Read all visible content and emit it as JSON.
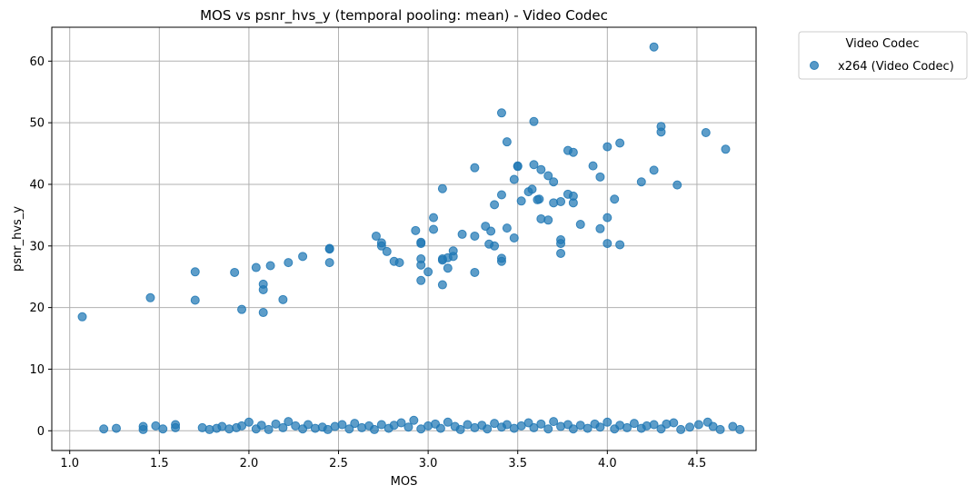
{
  "chart_data": {
    "type": "scatter",
    "title": "MOS vs psnr_hvs_y (temporal pooling: mean) - Video Codec",
    "xlabel": "MOS",
    "ylabel": "psnr_hvs_y",
    "xlim": [
      0.9,
      4.83
    ],
    "ylim": [
      -3.2,
      65.5
    ],
    "xticks": [
      1.0,
      1.5,
      2.0,
      2.5,
      3.0,
      3.5,
      4.0,
      4.5
    ],
    "xtick_labels": [
      "1.0",
      "1.5",
      "2.0",
      "2.5",
      "3.0",
      "3.5",
      "4.0",
      "4.5"
    ],
    "yticks": [
      0,
      10,
      20,
      30,
      40,
      50,
      60
    ],
    "ytick_labels": [
      "0",
      "10",
      "20",
      "30",
      "40",
      "50",
      "60"
    ],
    "grid": true,
    "legend": {
      "title": "Video Codec",
      "placement": "outside-top-right"
    },
    "series": [
      {
        "name": "x264 (Video Codec)",
        "color": "#1f77b4",
        "points": [
          [
            1.07,
            18.5
          ],
          [
            1.45,
            21.6
          ],
          [
            1.7,
            25.8
          ],
          [
            1.7,
            21.2
          ],
          [
            1.92,
            25.7
          ],
          [
            1.96,
            19.7
          ],
          [
            2.04,
            26.5
          ],
          [
            2.08,
            23.8
          ],
          [
            2.08,
            22.9
          ],
          [
            2.08,
            19.2
          ],
          [
            2.12,
            26.8
          ],
          [
            2.19,
            21.3
          ],
          [
            2.22,
            27.3
          ],
          [
            2.3,
            28.3
          ],
          [
            2.45,
            29.6
          ],
          [
            2.45,
            29.5
          ],
          [
            2.45,
            27.3
          ],
          [
            2.71,
            31.6
          ],
          [
            2.74,
            30.5
          ],
          [
            2.74,
            30.0
          ],
          [
            2.77,
            29.1
          ],
          [
            2.81,
            27.5
          ],
          [
            2.84,
            27.3
          ],
          [
            2.93,
            32.5
          ],
          [
            2.96,
            30.6
          ],
          [
            2.96,
            30.4
          ],
          [
            2.96,
            27.9
          ],
          [
            2.96,
            26.9
          ],
          [
            2.96,
            24.4
          ],
          [
            3.0,
            25.8
          ],
          [
            3.03,
            32.7
          ],
          [
            3.03,
            34.6
          ],
          [
            3.08,
            39.3
          ],
          [
            3.08,
            27.9
          ],
          [
            3.08,
            27.7
          ],
          [
            3.08,
            23.7
          ],
          [
            3.11,
            28.1
          ],
          [
            3.11,
            26.4
          ],
          [
            3.14,
            28.3
          ],
          [
            3.14,
            29.2
          ],
          [
            3.19,
            31.9
          ],
          [
            3.26,
            42.7
          ],
          [
            3.26,
            31.6
          ],
          [
            3.26,
            25.7
          ],
          [
            3.32,
            33.2
          ],
          [
            3.34,
            30.3
          ],
          [
            3.35,
            32.4
          ],
          [
            3.37,
            30.0
          ],
          [
            3.37,
            36.7
          ],
          [
            3.41,
            38.3
          ],
          [
            3.41,
            27.5
          ],
          [
            3.41,
            28.0
          ],
          [
            3.41,
            51.6
          ],
          [
            3.44,
            32.9
          ],
          [
            3.44,
            46.9
          ],
          [
            3.48,
            31.3
          ],
          [
            3.48,
            40.8
          ],
          [
            3.5,
            43.0
          ],
          [
            3.5,
            42.9
          ],
          [
            3.52,
            37.3
          ],
          [
            3.56,
            38.8
          ],
          [
            3.58,
            39.2
          ],
          [
            3.59,
            43.2
          ],
          [
            3.59,
            50.2
          ],
          [
            3.61,
            37.5
          ],
          [
            3.62,
            37.6
          ],
          [
            3.63,
            34.4
          ],
          [
            3.63,
            42.4
          ],
          [
            3.67,
            34.2
          ],
          [
            3.67,
            41.4
          ],
          [
            3.7,
            37.0
          ],
          [
            3.7,
            40.4
          ],
          [
            3.74,
            31.0
          ],
          [
            3.74,
            30.4
          ],
          [
            3.74,
            28.8
          ],
          [
            3.74,
            37.2
          ],
          [
            3.78,
            38.4
          ],
          [
            3.78,
            45.5
          ],
          [
            3.81,
            45.2
          ],
          [
            3.81,
            38.1
          ],
          [
            3.81,
            37.0
          ],
          [
            3.85,
            33.5
          ],
          [
            3.92,
            43.0
          ],
          [
            3.96,
            41.2
          ],
          [
            3.96,
            32.8
          ],
          [
            4.0,
            34.6
          ],
          [
            4.0,
            30.4
          ],
          [
            4.0,
            46.1
          ],
          [
            4.04,
            37.6
          ],
          [
            4.07,
            46.7
          ],
          [
            4.07,
            30.2
          ],
          [
            4.19,
            40.4
          ],
          [
            4.26,
            62.3
          ],
          [
            4.26,
            42.3
          ],
          [
            4.3,
            49.4
          ],
          [
            4.3,
            48.5
          ],
          [
            4.39,
            39.9
          ],
          [
            4.55,
            48.4
          ],
          [
            4.66,
            45.7
          ],
          [
            1.19,
            0.3
          ],
          [
            1.26,
            0.4
          ],
          [
            1.41,
            0.7
          ],
          [
            1.41,
            0.2
          ],
          [
            1.48,
            0.8
          ],
          [
            1.52,
            0.3
          ],
          [
            1.59,
            1.0
          ],
          [
            1.59,
            0.5
          ],
          [
            1.74,
            0.5
          ],
          [
            1.78,
            0.2
          ],
          [
            1.82,
            0.4
          ],
          [
            1.85,
            0.7
          ],
          [
            1.89,
            0.3
          ],
          [
            1.93,
            0.5
          ],
          [
            1.96,
            0.8
          ],
          [
            2.0,
            1.4
          ],
          [
            2.04,
            0.3
          ],
          [
            2.07,
            0.9
          ],
          [
            2.11,
            0.2
          ],
          [
            2.15,
            1.1
          ],
          [
            2.19,
            0.5
          ],
          [
            2.22,
            1.5
          ],
          [
            2.26,
            0.8
          ],
          [
            2.3,
            0.3
          ],
          [
            2.33,
            1.0
          ],
          [
            2.37,
            0.4
          ],
          [
            2.41,
            0.6
          ],
          [
            2.44,
            0.2
          ],
          [
            2.48,
            0.7
          ],
          [
            2.52,
            1.0
          ],
          [
            2.56,
            0.3
          ],
          [
            2.59,
            1.2
          ],
          [
            2.63,
            0.5
          ],
          [
            2.67,
            0.8
          ],
          [
            2.7,
            0.2
          ],
          [
            2.74,
            1.0
          ],
          [
            2.78,
            0.4
          ],
          [
            2.81,
            0.9
          ],
          [
            2.85,
            1.3
          ],
          [
            2.89,
            0.6
          ],
          [
            2.92,
            1.7
          ],
          [
            2.96,
            0.3
          ],
          [
            3.0,
            0.8
          ],
          [
            3.04,
            1.1
          ],
          [
            3.07,
            0.4
          ],
          [
            3.11,
            1.4
          ],
          [
            3.15,
            0.7
          ],
          [
            3.18,
            0.2
          ],
          [
            3.22,
            1.0
          ],
          [
            3.26,
            0.5
          ],
          [
            3.3,
            0.9
          ],
          [
            3.33,
            0.3
          ],
          [
            3.37,
            1.2
          ],
          [
            3.41,
            0.6
          ],
          [
            3.44,
            1.0
          ],
          [
            3.48,
            0.4
          ],
          [
            3.52,
            0.8
          ],
          [
            3.56,
            1.3
          ],
          [
            3.59,
            0.5
          ],
          [
            3.63,
            1.1
          ],
          [
            3.67,
            0.3
          ],
          [
            3.7,
            1.5
          ],
          [
            3.74,
            0.7
          ],
          [
            3.78,
            1.0
          ],
          [
            3.81,
            0.3
          ],
          [
            3.85,
            0.9
          ],
          [
            3.89,
            0.4
          ],
          [
            3.93,
            1.1
          ],
          [
            3.96,
            0.6
          ],
          [
            4.0,
            1.4
          ],
          [
            4.04,
            0.3
          ],
          [
            4.07,
            0.9
          ],
          [
            4.11,
            0.5
          ],
          [
            4.15,
            1.2
          ],
          [
            4.19,
            0.4
          ],
          [
            4.22,
            0.8
          ],
          [
            4.26,
            1.0
          ],
          [
            4.3,
            0.3
          ],
          [
            4.33,
            1.1
          ],
          [
            4.37,
            1.3
          ],
          [
            4.41,
            0.2
          ],
          [
            4.46,
            0.6
          ],
          [
            4.51,
            1.0
          ],
          [
            4.56,
            1.4
          ],
          [
            4.59,
            0.7
          ],
          [
            4.63,
            0.2
          ],
          [
            4.7,
            0.7
          ],
          [
            4.74,
            0.2
          ]
        ]
      }
    ]
  }
}
